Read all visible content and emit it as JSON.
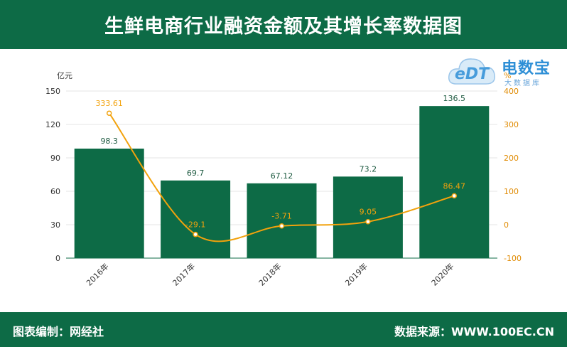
{
  "header": {
    "title": "生鲜电商行业融资金额及其增长率数据图"
  },
  "footer": {
    "left": "图表编制：网经社",
    "right": "数据来源：WWW.100EC.CN"
  },
  "logo": {
    "name": "电数宝",
    "subtitle": "大数据库",
    "mark": "eDT"
  },
  "colors": {
    "brand": "#0d6b46",
    "bar": "#0d6b46",
    "line": "#f2a20c",
    "axis_right": "#e08a00"
  },
  "chart_data": {
    "type": "bar",
    "categories": [
      "2016年",
      "2017年",
      "2018年",
      "2019年",
      "2020年"
    ],
    "series": [
      {
        "name": "",
        "type": "bar",
        "axis": "left",
        "values": [
          98.3,
          69.7,
          67.12,
          73.2,
          136.5
        ],
        "labels": [
          "98.3",
          "69.7",
          "67.12",
          "73.2",
          "136.5"
        ]
      },
      {
        "name": "",
        "type": "line",
        "axis": "right",
        "smooth": true,
        "values": [
          333.61,
          -29.1,
          -3.71,
          9.05,
          86.47
        ],
        "labels": [
          "333.61",
          "-29.1",
          "-3.71",
          "9.05",
          "86.47"
        ]
      }
    ],
    "ylabel": "亿元",
    "y2label": "%",
    "ylim": [
      0,
      150
    ],
    "yticks": [
      0,
      30,
      60,
      90,
      120,
      150
    ],
    "y2lim": [
      -100,
      400
    ],
    "y2ticks": [
      -100,
      0,
      100,
      200,
      300,
      400
    ],
    "grid": true,
    "legend": "none"
  }
}
